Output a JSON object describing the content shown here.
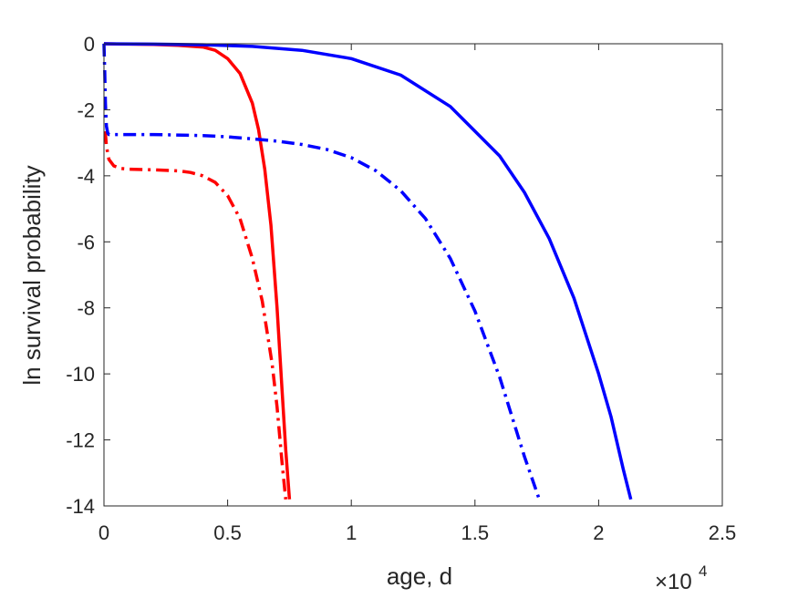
{
  "chart_data": {
    "type": "line",
    "title": "",
    "xlabel": "age, d",
    "ylabel": "ln survival probability",
    "x_exponent_label": {
      "base": "×10",
      "exponent": "4"
    },
    "xlim": [
      0,
      2.5
    ],
    "ylim": [
      -14,
      0
    ],
    "x_ticks": [
      "0",
      "0.5",
      "1",
      "1.5",
      "2",
      "2.5"
    ],
    "x_tick_values": [
      0,
      0.5,
      1,
      1.5,
      2,
      2.5
    ],
    "y_ticks": [
      "0",
      "-2",
      "-4",
      "-6",
      "-8",
      "-10",
      "-12",
      "-14"
    ],
    "y_tick_values": [
      0,
      -2,
      -4,
      -6,
      -8,
      -10,
      -12,
      -14
    ],
    "grid": false,
    "legend": "none",
    "x_units_note": "x values in units of 10^4 days",
    "series": [
      {
        "color": "#ff0000",
        "style": "solid",
        "x": [
          0,
          0.1,
          0.2,
          0.3,
          0.4,
          0.45,
          0.5,
          0.55,
          0.6,
          0.625,
          0.65,
          0.675,
          0.7,
          0.72,
          0.735,
          0.75
        ],
        "y": [
          0,
          -0.01,
          -0.02,
          -0.05,
          -0.1,
          -0.2,
          -0.45,
          -0.9,
          -1.8,
          -2.6,
          -3.8,
          -5.5,
          -8.0,
          -10.5,
          -12.3,
          -13.8
        ]
      },
      {
        "color": "#ff0000",
        "style": "dashdot",
        "x": [
          0.005,
          0.01,
          0.02,
          0.04,
          0.07,
          0.1,
          0.2,
          0.3,
          0.35,
          0.4,
          0.45,
          0.5,
          0.55,
          0.6,
          0.64,
          0.68,
          0.7,
          0.72,
          0.735
        ],
        "y": [
          -2.65,
          -3.1,
          -3.5,
          -3.7,
          -3.78,
          -3.8,
          -3.82,
          -3.85,
          -3.9,
          -4.0,
          -4.2,
          -4.6,
          -5.3,
          -6.5,
          -7.8,
          -9.7,
          -11.0,
          -12.7,
          -13.8
        ]
      },
      {
        "color": "#0000ff",
        "style": "solid",
        "x": [
          0,
          0.2,
          0.4,
          0.6,
          0.8,
          1.0,
          1.2,
          1.4,
          1.6,
          1.7,
          1.8,
          1.9,
          2.0,
          2.05,
          2.1,
          2.13
        ],
        "y": [
          0,
          -0.01,
          -0.03,
          -0.08,
          -0.2,
          -0.45,
          -0.95,
          -1.9,
          -3.4,
          -4.5,
          -5.9,
          -7.7,
          -10.0,
          -11.3,
          -12.9,
          -13.8
        ]
      },
      {
        "color": "#0000ff",
        "style": "dashdot",
        "x": [
          0,
          0.003,
          0.006,
          0.01,
          0.015,
          0.02,
          0.05,
          0.2,
          0.4,
          0.5,
          0.6,
          0.7,
          0.8,
          0.9,
          1.0,
          1.1,
          1.2,
          1.3,
          1.4,
          1.5,
          1.6,
          1.7,
          1.76
        ],
        "y": [
          0,
          -0.8,
          -1.8,
          -2.5,
          -2.7,
          -2.75,
          -2.75,
          -2.75,
          -2.78,
          -2.82,
          -2.88,
          -2.95,
          -3.05,
          -3.2,
          -3.45,
          -3.85,
          -4.45,
          -5.3,
          -6.5,
          -8.1,
          -10.1,
          -12.5,
          -13.8
        ]
      }
    ]
  }
}
